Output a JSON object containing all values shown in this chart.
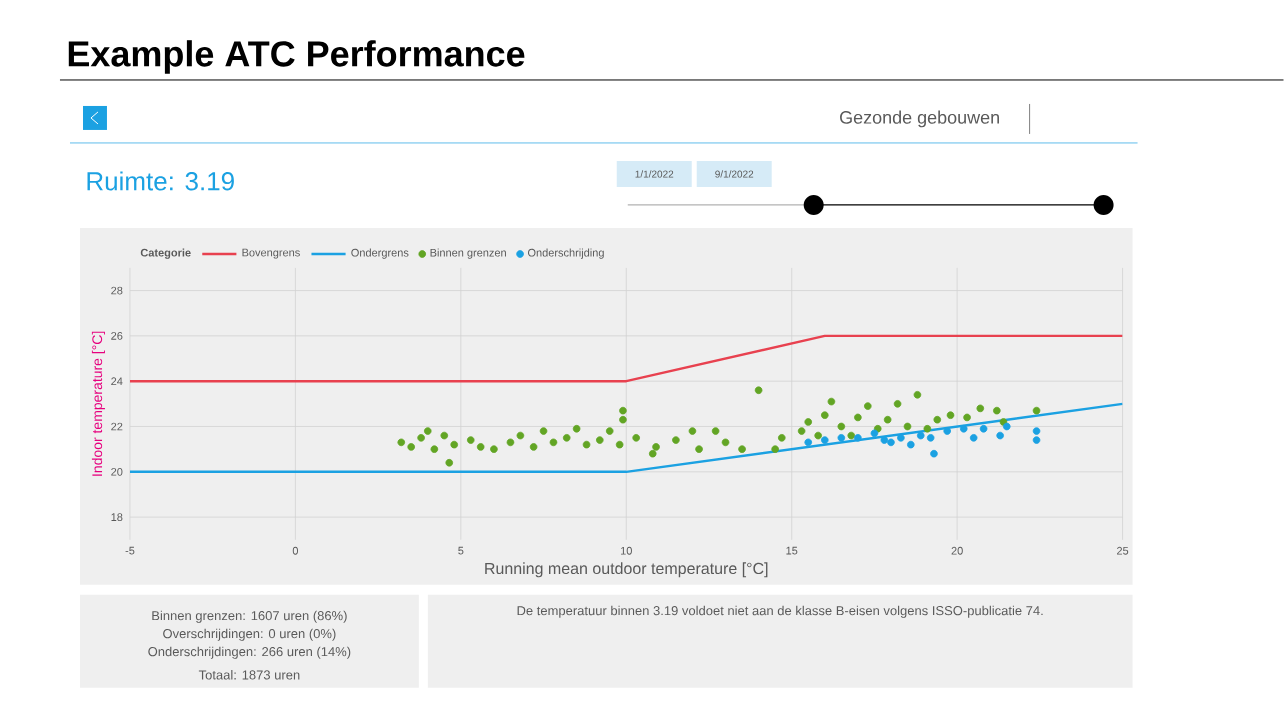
{
  "chart_data": {
    "type": "scatter",
    "title": "Example ATC Performance",
    "xlabel": "Running mean outdoor temperature [°C]",
    "ylabel": "Indoor temperature [°C]",
    "legend_title": "Categorie",
    "xlim": [
      -5,
      25
    ],
    "ylim": [
      17,
      29
    ],
    "xticks": [
      -5,
      0,
      5,
      10,
      15,
      20,
      25
    ],
    "yticks": [
      18,
      20,
      22,
      24,
      26,
      28
    ],
    "grid": true,
    "legend": "top left",
    "series": [
      {
        "name": "Bovengrens",
        "type": "line",
        "marker": "none",
        "color": "#e8414f",
        "x": [
          -5,
          10,
          16,
          25
        ],
        "values": [
          24,
          24,
          26,
          26
        ]
      },
      {
        "name": "Ondergrens",
        "type": "line",
        "marker": "none",
        "color": "#1ba1e2",
        "x": [
          -5,
          10,
          25
        ],
        "values": [
          20,
          20,
          23
        ]
      },
      {
        "name": "Binnen grenzen",
        "marker": "circle",
        "color": "#62a524",
        "x": [
          3.2,
          3.5,
          3.8,
          4.0,
          4.2,
          4.5,
          4.65,
          4.8,
          5.3,
          5.6,
          6.0,
          6.5,
          6.8,
          7.2,
          7.5,
          7.8,
          8.2,
          8.5,
          8.8,
          9.2,
          9.5,
          9.8,
          9.9,
          9.9,
          10.3,
          10.8,
          10.9,
          11.5,
          12.0,
          12.2,
          12.7,
          13.0,
          13.5,
          14.0,
          14.5,
          14.7,
          15.3,
          15.5,
          15.8,
          16.0,
          16.2,
          16.5,
          16.8,
          17.0,
          17.3,
          17.6,
          17.9,
          18.2,
          18.5,
          18.8,
          19.1,
          19.4,
          19.8,
          20.3,
          20.7,
          21.2,
          21.4,
          22.4
        ],
        "values": [
          21.3,
          21.1,
          21.5,
          21.8,
          21.0,
          21.6,
          20.4,
          21.2,
          21.4,
          21.1,
          21.0,
          21.3,
          21.6,
          21.1,
          21.8,
          21.3,
          21.5,
          21.9,
          21.2,
          21.4,
          21.8,
          21.2,
          22.3,
          22.7,
          21.5,
          20.8,
          21.1,
          21.4,
          21.8,
          21.0,
          21.8,
          21.3,
          21.0,
          23.6,
          21.0,
          21.5,
          21.8,
          22.2,
          21.6,
          22.5,
          23.1,
          22.0,
          21.6,
          22.4,
          22.9,
          21.9,
          22.3,
          23.0,
          22.0,
          23.4,
          21.9,
          22.3,
          22.5,
          22.4,
          22.8,
          22.7,
          22.2,
          22.7
        ]
      },
      {
        "name": "Onderschrijding",
        "marker": "circle",
        "color": "#1ba1e2",
        "x": [
          15.5,
          16.0,
          16.5,
          17.0,
          17.5,
          17.8,
          18.0,
          18.3,
          18.6,
          18.9,
          19.2,
          19.3,
          19.7,
          20.2,
          20.5,
          20.8,
          21.3,
          21.5,
          22.4,
          22.4
        ],
        "values": [
          21.3,
          21.4,
          21.5,
          21.5,
          21.7,
          21.4,
          21.3,
          21.5,
          21.2,
          21.6,
          21.5,
          20.8,
          21.8,
          21.9,
          21.5,
          21.9,
          21.6,
          22.0,
          21.4,
          21.8
        ]
      }
    ],
    "annotations": [
      "Gezonde gebouwen",
      "Ruimte: 3.19",
      "1/1/2022",
      "9/1/2022",
      "Binnen grenzen: 1607 uren (86%)",
      "Overschrijdingen: 0 uren (0%)",
      "Onderschrijdingen: 266 uren (14%)",
      "Totaal: 1873 uren",
      "De temperatuur binnen 3.19 voldoet niet aan de klasse B-eisen volgens ISSO-publicatie 74."
    ]
  }
}
